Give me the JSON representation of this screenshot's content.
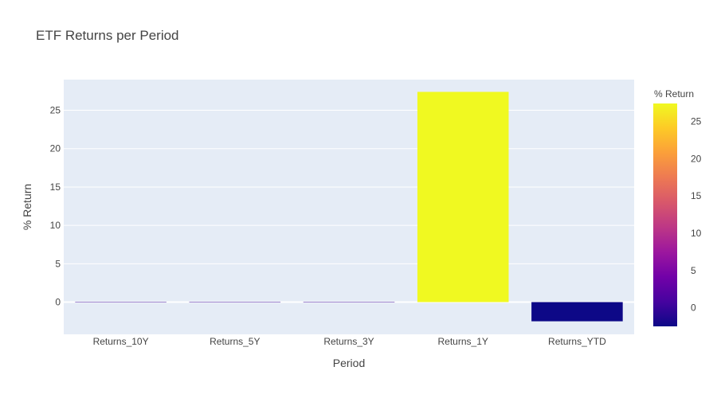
{
  "chart_data": {
    "type": "bar",
    "title": "ETF Returns per Period",
    "xlabel": "Period",
    "ylabel": "% Return",
    "categories": [
      "Returns_10Y",
      "Returns_5Y",
      "Returns_3Y",
      "Returns_1Y",
      "Returns_YTD"
    ],
    "values": [
      0,
      0,
      0,
      27.4,
      -2.5
    ],
    "ylim": [
      -4.2,
      29
    ],
    "yticks": [
      0,
      5,
      10,
      15,
      20,
      25
    ],
    "grid": true,
    "plot_bg": "#e5ecf6",
    "colorbar": {
      "title": "% Return",
      "range": [
        -2.5,
        27.4
      ],
      "ticks": [
        0,
        5,
        10,
        15,
        20,
        25
      ],
      "colors": [
        "#0d0887",
        "#46039f",
        "#7201a8",
        "#9c179e",
        "#bd3786",
        "#d8576b",
        "#ed7953",
        "#fb9f3a",
        "#fdca26",
        "#f0f921"
      ]
    }
  }
}
